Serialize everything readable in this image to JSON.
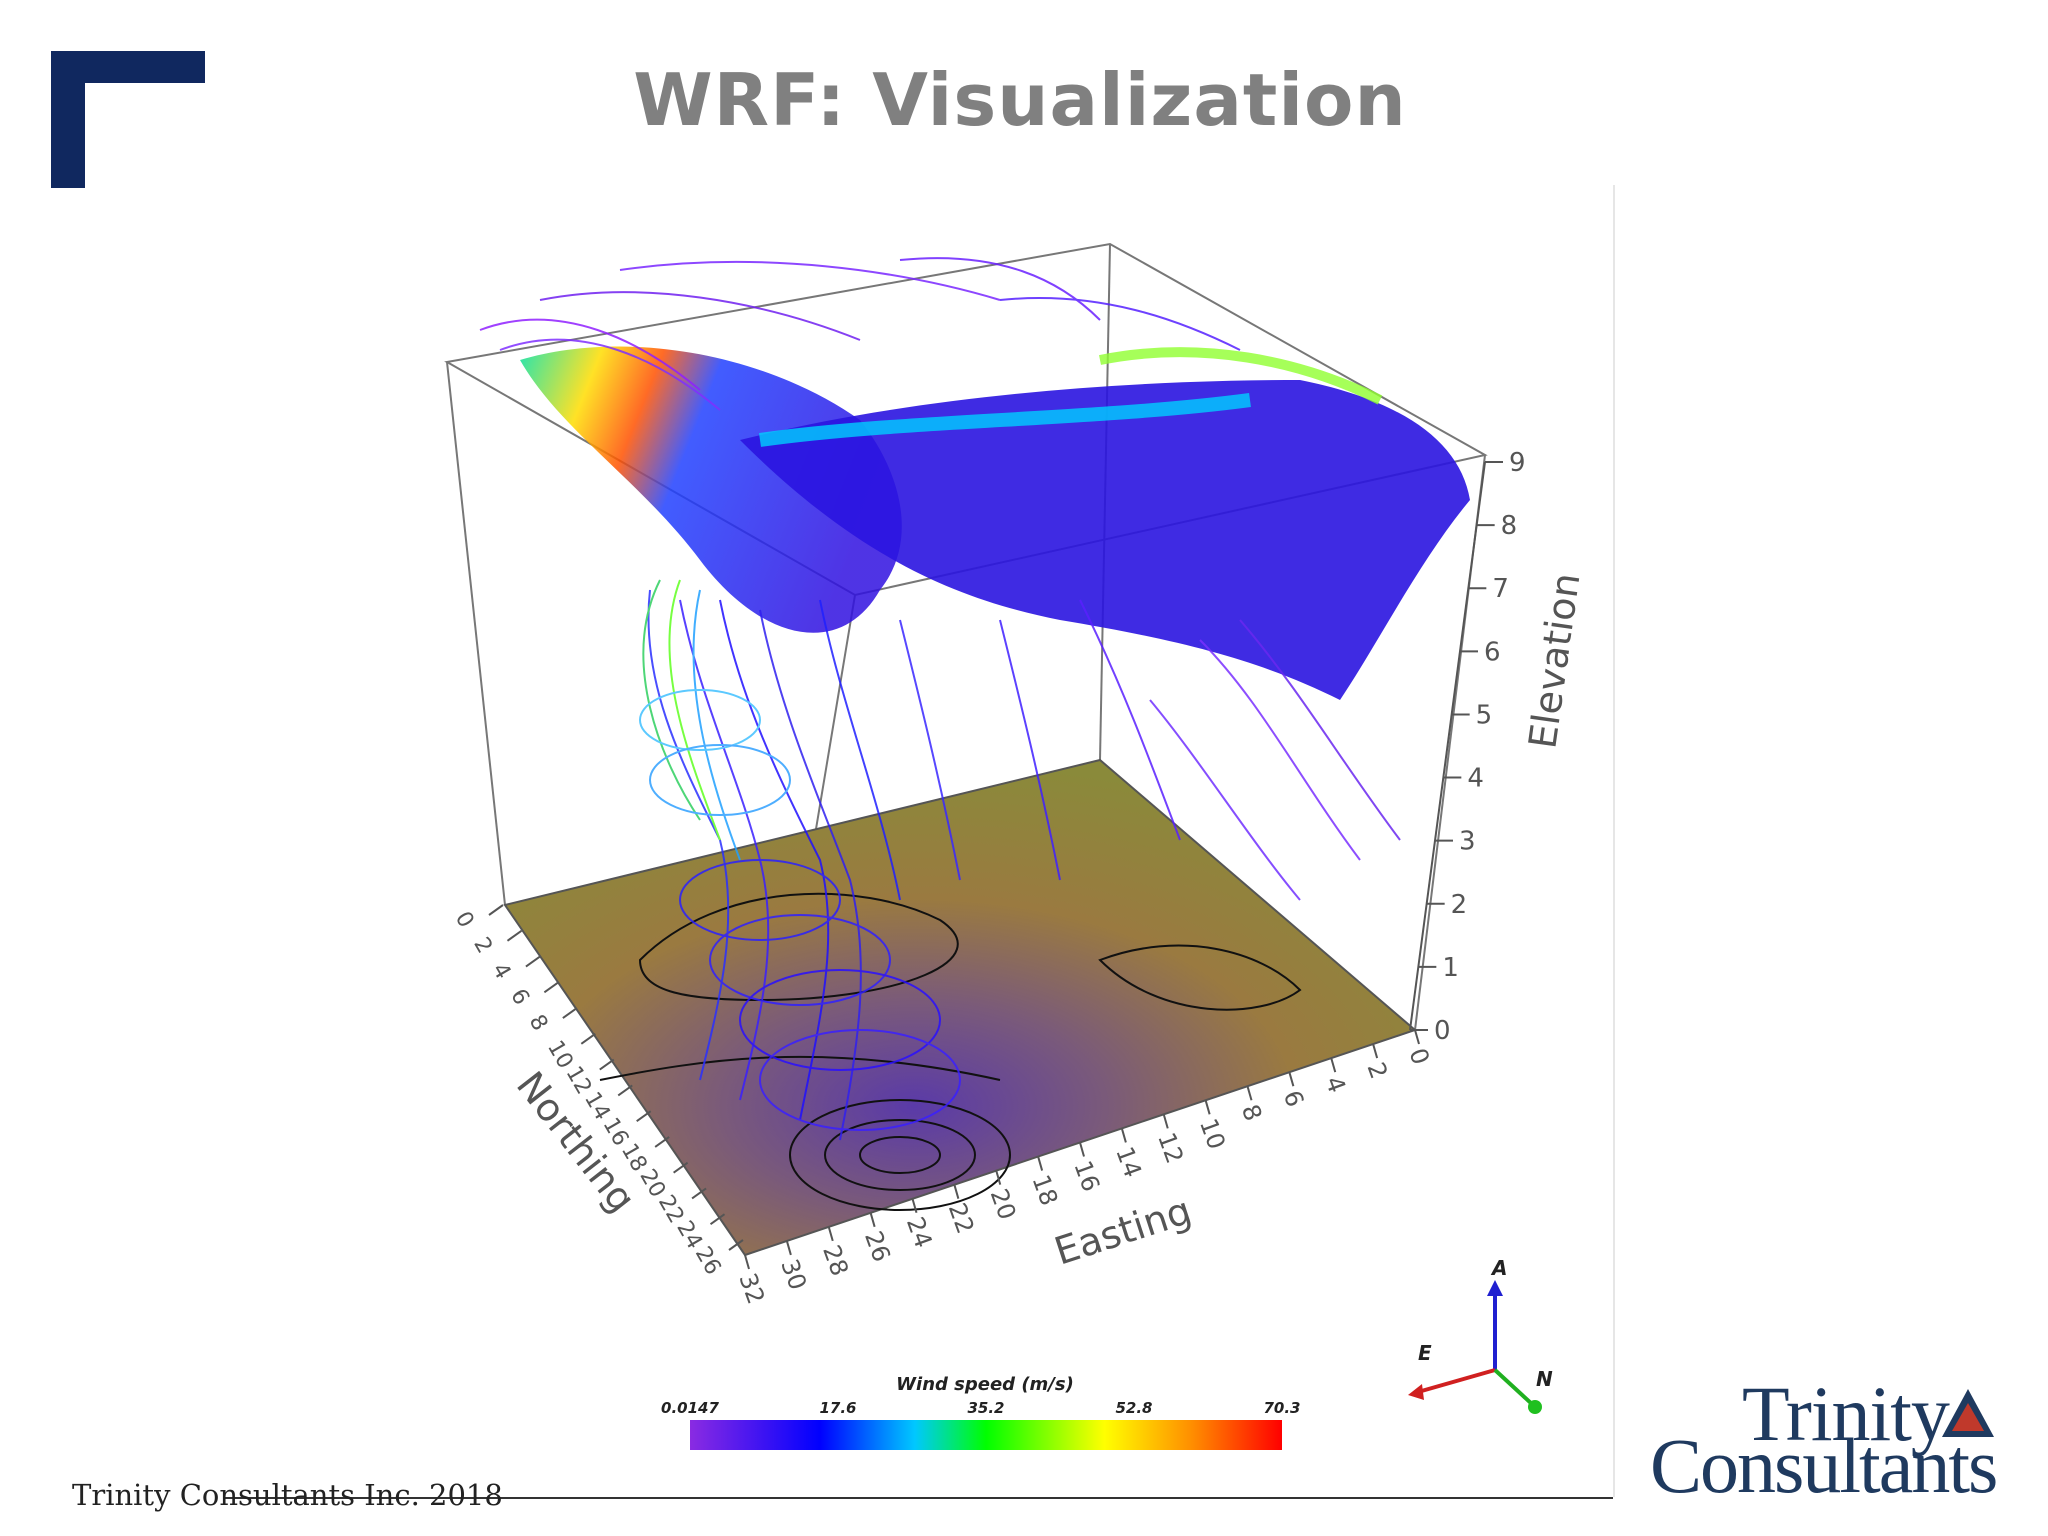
{
  "slide": {
    "title": "WRF: Visualization",
    "footer": "Trinity Consultants Inc. 2018"
  },
  "logo": {
    "line1": "Trinity",
    "line2": "Consultants"
  },
  "brand_colors": {
    "navy": "#10285f",
    "title_gray": "#808080",
    "logo_blue": "#1f3a5f",
    "logo_red": "#c0392b"
  },
  "figure": {
    "axis_titles": {
      "elevation": "Elevation",
      "easting": "Easting",
      "northing": "Northing"
    },
    "elevation_ticks": [
      "0",
      "1",
      "2",
      "3",
      "4",
      "5",
      "6",
      "7",
      "8",
      "9"
    ],
    "easting_ticks": [
      "0",
      "2",
      "4",
      "6",
      "8",
      "10",
      "12",
      "14",
      "16",
      "18",
      "20",
      "22",
      "24",
      "26",
      "28",
      "30",
      "32"
    ],
    "northing_ticks": [
      "0",
      "2",
      "4",
      "6",
      "8",
      "10",
      "12",
      "14",
      "16",
      "18",
      "20",
      "22",
      "24",
      "26"
    ],
    "colorbar": {
      "title": "Wind speed (m/s)",
      "labels": [
        "0.0147",
        "17.6",
        "35.2",
        "52.8",
        "70.3"
      ],
      "colors": [
        "#8a2be2",
        "#0000ff",
        "#00c8ff",
        "#00ff00",
        "#ffff00",
        "#ff8c00",
        "#ff0000"
      ]
    },
    "orientation_axes": {
      "up": "A",
      "east": "E",
      "north": "N"
    }
  }
}
